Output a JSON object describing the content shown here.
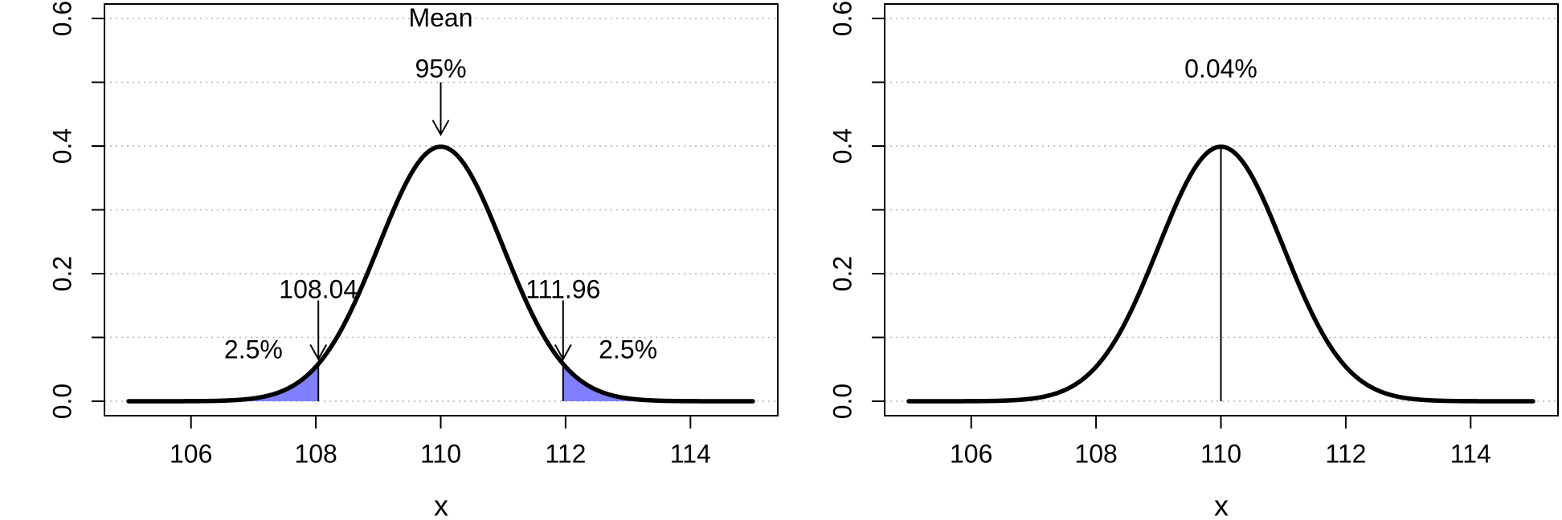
{
  "chart_data": [
    {
      "type": "line",
      "title": "",
      "xlabel": "x",
      "ylabel": "",
      "xlim": [
        105,
        115
      ],
      "ylim": [
        0,
        0.6
      ],
      "x_ticks": [
        106,
        108,
        110,
        112,
        114
      ],
      "y_ticks": [
        0.0,
        0.1,
        0.2,
        0.3,
        0.4,
        0.5,
        0.6
      ],
      "y_tick_labels": [
        "0.0",
        "0.2",
        "0.4",
        "0.6"
      ],
      "grid": "horizontal-dotted",
      "series": [
        {
          "distribution": "normal",
          "mean": 110,
          "sd": 1,
          "x_range": [
            105,
            115
          ],
          "line_color": "#000000"
        }
      ],
      "shaded_regions": [
        {
          "x_from": 105,
          "x_to": 108.04,
          "color": "#8080ff"
        },
        {
          "x_from": 111.96,
          "x_to": 115,
          "color": "#8080ff"
        }
      ],
      "vertical_segments": [
        {
          "x": 108.04,
          "y_from": 0,
          "y_to": 0.0565
        },
        {
          "x": 111.96,
          "y_from": 0,
          "y_to": 0.0565
        }
      ],
      "annotations": [
        {
          "text": "Mean",
          "x": 110,
          "y": 0.598
        },
        {
          "text": "95%",
          "x": 110,
          "y": 0.518
        },
        {
          "text": "108.04",
          "x": 108.04,
          "y": 0.172
        },
        {
          "text": "111.96",
          "x": 111.96,
          "y": 0.172
        },
        {
          "text": "2.5%",
          "x": 107.0,
          "y": 0.078
        },
        {
          "text": "2.5%",
          "x": 113.0,
          "y": 0.078
        }
      ],
      "arrows": [
        {
          "x": 110,
          "y_from": 0.5,
          "y_to": 0.418
        },
        {
          "x": 108.04,
          "y_from": 0.158,
          "y_to": 0.066
        },
        {
          "x": 111.96,
          "y_from": 0.158,
          "y_to": 0.066
        }
      ]
    },
    {
      "type": "line",
      "title": "",
      "xlabel": "x",
      "ylabel": "",
      "xlim": [
        105,
        115
      ],
      "ylim": [
        0,
        0.6
      ],
      "x_ticks": [
        106,
        108,
        110,
        112,
        114
      ],
      "y_ticks": [
        0.0,
        0.1,
        0.2,
        0.3,
        0.4,
        0.5,
        0.6
      ],
      "y_tick_labels": [
        "0.0",
        "0.2",
        "0.4",
        "0.6"
      ],
      "grid": "horizontal-dotted",
      "series": [
        {
          "distribution": "normal",
          "mean": 110,
          "sd": 1,
          "x_range": [
            105,
            115
          ],
          "line_color": "#000000"
        }
      ],
      "shaded_regions": [],
      "vertical_segments": [
        {
          "x": 110,
          "y_from": 0,
          "y_to": 0.399
        }
      ],
      "annotations": [
        {
          "text": "0.04%",
          "x": 110,
          "y": 0.518
        }
      ],
      "arrows": []
    }
  ]
}
